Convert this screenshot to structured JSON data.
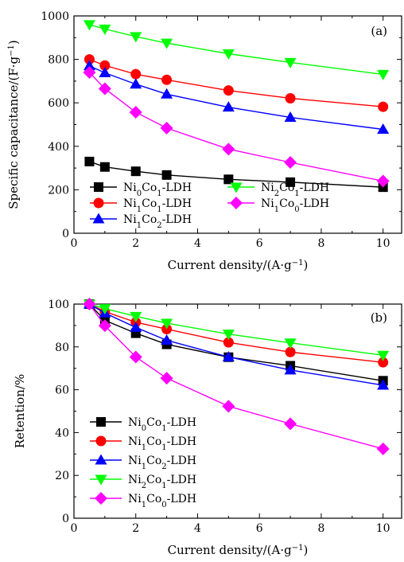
{
  "chart_data": [
    {
      "type": "line",
      "panel_label": "(a)",
      "xlabel": "Current density/(A·g−1)",
      "ylabel": "Specific capacitance/(F·g−1)",
      "xlim": [
        0,
        10.6
      ],
      "ylim": [
        0,
        1000
      ],
      "xticks": [
        0,
        2,
        4,
        6,
        8,
        10
      ],
      "yticks": [
        0,
        200,
        400,
        600,
        800,
        1000
      ],
      "x": [
        0.5,
        1,
        2,
        3,
        5,
        7,
        10
      ],
      "legend_placement": "bottom-left, two columns",
      "series": [
        {
          "name": "Ni0Co1-LDH",
          "marker": "square",
          "color": "#000000",
          "values": [
            330,
            305,
            285,
            268,
            248,
            235,
            212
          ]
        },
        {
          "name": "Ni1Co1-LDH",
          "marker": "circle",
          "color": "#ff0000",
          "values": [
            800,
            772,
            732,
            706,
            657,
            621,
            582
          ]
        },
        {
          "name": "Ni1Co2-LDH",
          "marker": "triangle-up",
          "color": "#0000ff",
          "values": [
            770,
            738,
            686,
            640,
            580,
            533,
            478
          ]
        },
        {
          "name": "Ni2Co1-LDH",
          "marker": "triangle-down",
          "color": "#00ff00",
          "values": [
            960,
            940,
            905,
            875,
            826,
            786,
            731
          ]
        },
        {
          "name": "Ni1Co0-LDH",
          "marker": "diamond",
          "color": "#ff00ff",
          "values": [
            740,
            665,
            557,
            484,
            387,
            326,
            240
          ]
        }
      ]
    },
    {
      "type": "line",
      "panel_label": "(b)",
      "xlabel": "Current density/(A·g−1)",
      "ylabel": "Retention/%",
      "xlim": [
        0,
        10.6
      ],
      "ylim": [
        0,
        100
      ],
      "xticks": [
        0,
        2,
        4,
        6,
        8,
        10
      ],
      "yticks": [
        0,
        20,
        40,
        60,
        80,
        100
      ],
      "x": [
        0.5,
        1,
        2,
        3,
        5,
        7,
        10
      ],
      "legend_placement": "bottom-left, one column",
      "series": [
        {
          "name": "Ni0Co1-LDH",
          "marker": "square",
          "color": "#000000",
          "values": [
            100,
            92.4,
            86.4,
            81.2,
            75.2,
            71.2,
            64.2
          ]
        },
        {
          "name": "Ni1Co1-LDH",
          "marker": "circle",
          "color": "#ff0000",
          "values": [
            100,
            96.5,
            91.5,
            88.3,
            82.1,
            77.6,
            72.8
          ]
        },
        {
          "name": "Ni1Co2-LDH",
          "marker": "triangle-up",
          "color": "#0000ff",
          "values": [
            100,
            95.8,
            89.1,
            83.1,
            75.3,
            69.2,
            62.1
          ]
        },
        {
          "name": "Ni2Co1-LDH",
          "marker": "triangle-down",
          "color": "#00ff00",
          "values": [
            100,
            97.9,
            94.3,
            91.1,
            86.0,
            81.9,
            76.1
          ]
        },
        {
          "name": "Ni1Co0-LDH",
          "marker": "diamond",
          "color": "#ff00ff",
          "values": [
            100,
            89.9,
            75.3,
            65.4,
            52.3,
            44.1,
            32.4
          ]
        }
      ]
    }
  ]
}
